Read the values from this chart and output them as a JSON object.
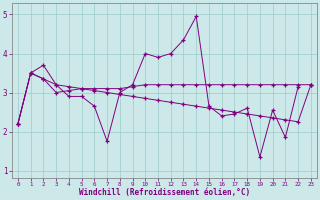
{
  "xlabel": "Windchill (Refroidissement éolien,°C)",
  "bg_color": "#cce8e8",
  "line_color": "#800080",
  "grid_color": "#99cccc",
  "xlim": [
    -0.5,
    23.5
  ],
  "ylim": [
    0.8,
    5.3
  ],
  "yticks": [
    1,
    2,
    3,
    4,
    5
  ],
  "xticks": [
    0,
    1,
    2,
    3,
    4,
    5,
    6,
    7,
    8,
    9,
    10,
    11,
    12,
    13,
    14,
    15,
    16,
    17,
    18,
    19,
    20,
    21,
    22,
    23
  ],
  "series": [
    [
      2.2,
      3.5,
      3.7,
      3.2,
      2.9,
      2.9,
      2.65,
      1.75,
      3.0,
      3.2,
      4.0,
      3.9,
      4.0,
      4.35,
      4.95,
      2.65,
      2.4,
      2.45,
      2.6,
      1.35,
      2.55,
      1.85,
      3.15,
      null
    ],
    [
      2.2,
      3.5,
      3.35,
      3.0,
      3.05,
      3.1,
      3.1,
      3.1,
      3.1,
      3.15,
      3.2,
      3.2,
      3.2,
      3.2,
      3.2,
      3.2,
      3.2,
      3.2,
      3.2,
      3.2,
      3.2,
      3.2,
      3.2,
      3.2
    ],
    [
      2.2,
      3.5,
      3.35,
      3.2,
      3.15,
      3.1,
      3.05,
      3.0,
      2.95,
      2.9,
      2.85,
      2.8,
      2.75,
      2.7,
      2.65,
      2.6,
      2.55,
      2.5,
      2.45,
      2.4,
      2.35,
      2.3,
      2.25,
      3.2
    ],
    [
      null,
      null,
      null,
      null,
      null,
      null,
      null,
      null,
      null,
      null,
      null,
      null,
      null,
      null,
      null,
      null,
      null,
      null,
      null,
      null,
      null,
      null,
      null,
      3.2
    ]
  ]
}
